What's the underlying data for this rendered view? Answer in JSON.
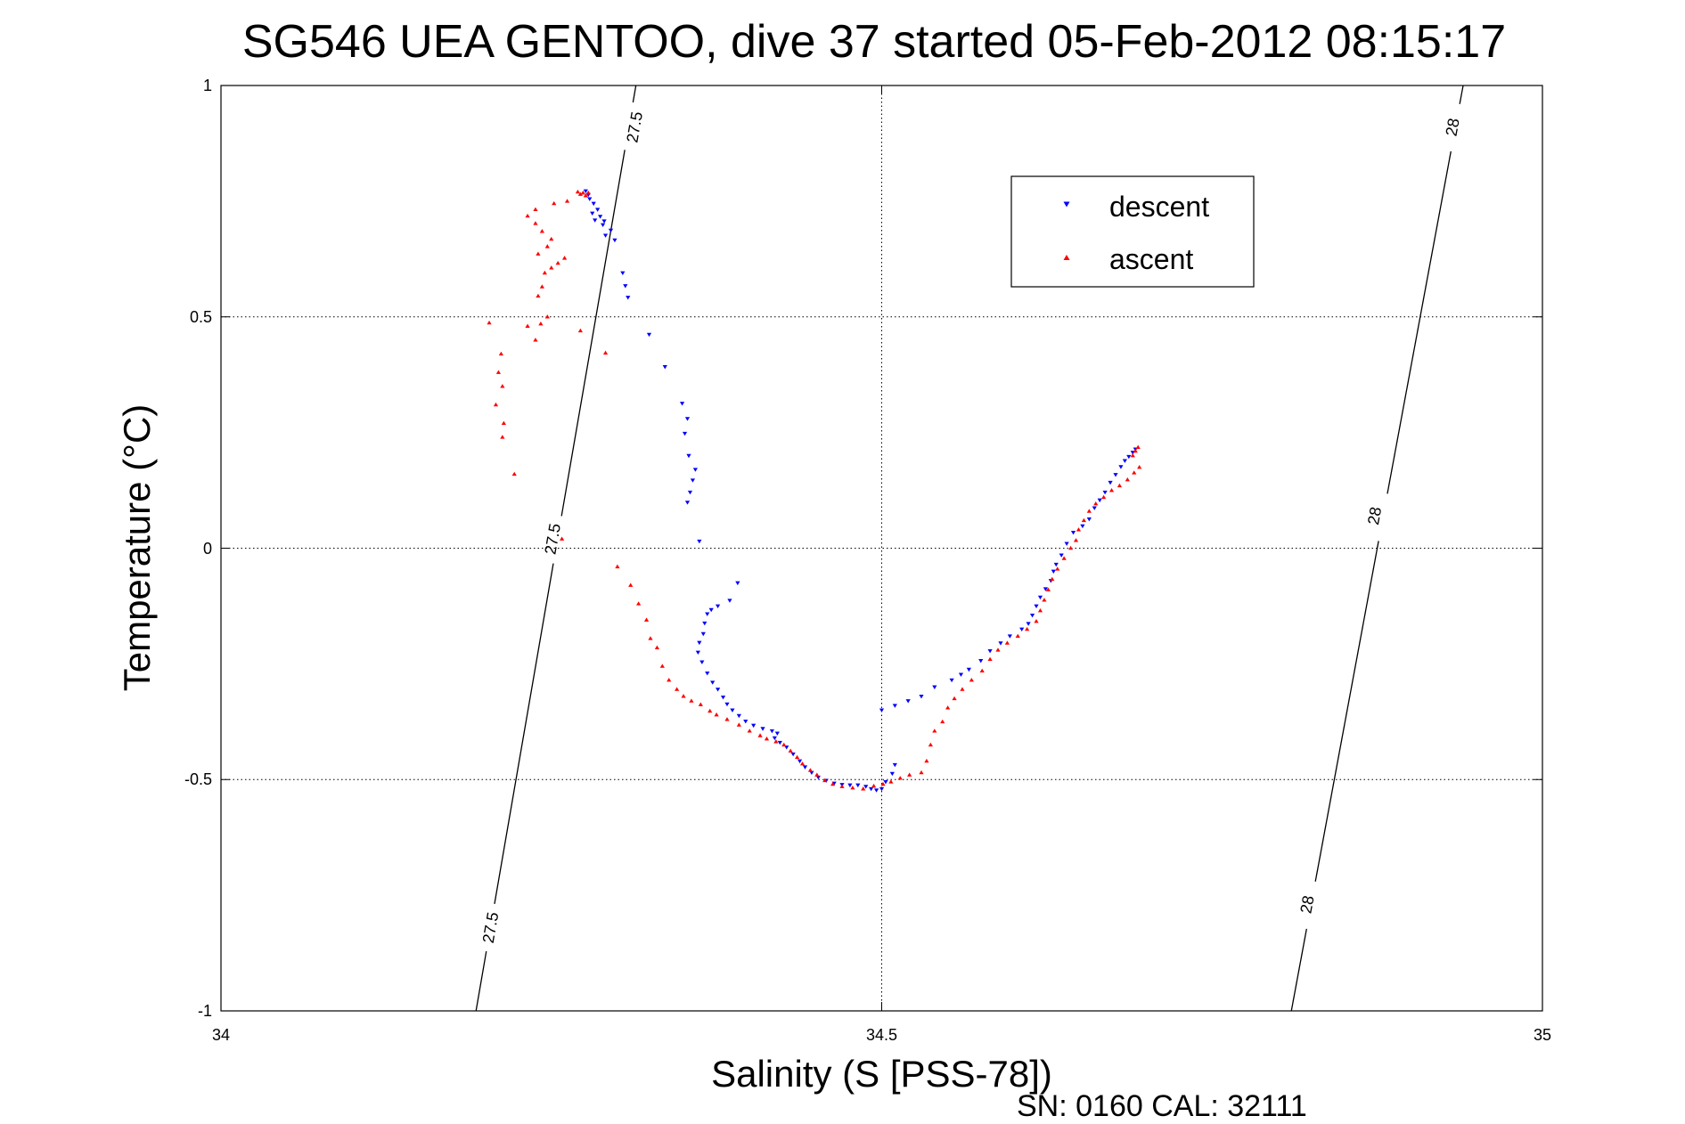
{
  "chart_data": {
    "type": "scatter",
    "title": "SG546 UEA GENTOO, dive 37 started 05-Feb-2012 08:15:17",
    "xlabel": "Salinity (S [PSS-78])",
    "ylabel": "Temperature (°C)",
    "xlim": [
      34,
      35
    ],
    "ylim": [
      -1,
      1
    ],
    "x_ticks": [
      "34",
      "34.5",
      "35"
    ],
    "y_ticks": [
      "1",
      "0.5",
      "0",
      "-0.5",
      "-1"
    ],
    "grid": true,
    "legend_position": "top-right",
    "footer": "SN: 0160  CAL: 32111",
    "contours": [
      {
        "label": "27.5",
        "points": [
          [
            34.193,
            -1.0
          ],
          [
            34.314,
            1.0
          ]
        ],
        "label_positions": [
          [
            34.204,
            -0.82
          ],
          [
            34.251,
            0.02
          ],
          [
            34.313,
            0.91
          ]
        ]
      },
      {
        "label": "28",
        "points": [
          [
            34.81,
            -1.0
          ],
          [
            34.94,
            1.0
          ]
        ],
        "label_positions": [
          [
            34.822,
            -0.77
          ],
          [
            34.873,
            0.07
          ],
          [
            34.932,
            0.91
          ]
        ]
      }
    ],
    "series": [
      {
        "name": "descent",
        "color": "#0000ff",
        "marker": "triangle-down",
        "points": [
          [
            34.276,
            0.772
          ],
          [
            34.278,
            0.764
          ],
          [
            34.279,
            0.755
          ],
          [
            34.282,
            0.745
          ],
          [
            34.285,
            0.732
          ],
          [
            34.281,
            0.724
          ],
          [
            34.287,
            0.717
          ],
          [
            34.283,
            0.709
          ],
          [
            34.29,
            0.707
          ],
          [
            34.289,
            0.699
          ],
          [
            34.295,
            0.687
          ],
          [
            34.291,
            0.676
          ],
          [
            34.298,
            0.666
          ],
          [
            34.304,
            0.595
          ],
          [
            34.306,
            0.567
          ],
          [
            34.308,
            0.542
          ],
          [
            34.324,
            0.462
          ],
          [
            34.336,
            0.392
          ],
          [
            34.349,
            0.313
          ],
          [
            34.353,
            0.28
          ],
          [
            34.351,
            0.248
          ],
          [
            34.354,
            0.2
          ],
          [
            34.359,
            0.17
          ],
          [
            34.357,
            0.147
          ],
          [
            34.355,
            0.121
          ],
          [
            34.353,
            0.099
          ],
          [
            34.362,
            0.015
          ],
          [
            34.391,
            -0.075
          ],
          [
            34.385,
            -0.113
          ],
          [
            34.376,
            -0.125
          ],
          [
            34.371,
            -0.133
          ],
          [
            34.368,
            -0.142
          ],
          [
            34.366,
            -0.162
          ],
          [
            34.365,
            -0.185
          ],
          [
            34.362,
            -0.204
          ],
          [
            34.361,
            -0.225
          ],
          [
            34.364,
            -0.246
          ],
          [
            34.368,
            -0.27
          ],
          [
            34.372,
            -0.29
          ],
          [
            34.376,
            -0.305
          ],
          [
            34.38,
            -0.322
          ],
          [
            34.383,
            -0.337
          ],
          [
            34.387,
            -0.35
          ],
          [
            34.392,
            -0.362
          ],
          [
            34.397,
            -0.374
          ],
          [
            34.403,
            -0.383
          ],
          [
            34.41,
            -0.39
          ],
          [
            34.417,
            -0.395
          ],
          [
            34.421,
            -0.4
          ],
          [
            34.419,
            -0.41
          ],
          [
            34.423,
            -0.42
          ],
          [
            34.428,
            -0.43
          ],
          [
            34.433,
            -0.445
          ],
          [
            34.438,
            -0.46
          ],
          [
            34.442,
            -0.473
          ],
          [
            34.447,
            -0.485
          ],
          [
            34.452,
            -0.495
          ],
          [
            34.458,
            -0.502
          ],
          [
            34.464,
            -0.508
          ],
          [
            34.47,
            -0.511
          ],
          [
            34.476,
            -0.512
          ],
          [
            34.482,
            -0.512
          ],
          [
            34.488,
            -0.515
          ],
          [
            34.492,
            -0.52
          ],
          [
            34.496,
            -0.523
          ],
          [
            34.5,
            -0.52
          ],
          [
            34.503,
            -0.505
          ],
          [
            34.508,
            -0.487
          ],
          [
            34.51,
            -0.468
          ],
          [
            34.5,
            -0.35
          ],
          [
            34.51,
            -0.34
          ],
          [
            34.52,
            -0.33
          ],
          [
            34.53,
            -0.32
          ],
          [
            34.54,
            -0.3
          ],
          [
            34.553,
            -0.285
          ],
          [
            34.56,
            -0.273
          ],
          [
            34.566,
            -0.262
          ],
          [
            34.575,
            -0.243
          ],
          [
            34.582,
            -0.222
          ],
          [
            34.59,
            -0.205
          ],
          [
            34.597,
            -0.19
          ],
          [
            34.606,
            -0.175
          ],
          [
            34.611,
            -0.163
          ],
          [
            34.614,
            -0.145
          ],
          [
            34.617,
            -0.125
          ],
          [
            34.62,
            -0.106
          ],
          [
            34.624,
            -0.088
          ],
          [
            34.628,
            -0.07
          ],
          [
            34.63,
            -0.05
          ],
          [
            34.632,
            -0.035
          ],
          [
            34.636,
            -0.015
          ],
          [
            34.64,
            0.01
          ],
          [
            34.645,
            0.034
          ],
          [
            34.652,
            0.048
          ],
          [
            34.657,
            0.063
          ],
          [
            34.661,
            0.087
          ],
          [
            34.665,
            0.104
          ],
          [
            34.669,
            0.121
          ],
          [
            34.673,
            0.142
          ],
          [
            34.677,
            0.159
          ],
          [
            34.681,
            0.176
          ],
          [
            34.684,
            0.189
          ],
          [
            34.687,
            0.198
          ],
          [
            34.69,
            0.207
          ],
          [
            34.692,
            0.214
          ]
        ]
      },
      {
        "name": "ascent",
        "color": "#ff0000",
        "marker": "triangle-up",
        "points": [
          [
            34.27,
            0.77
          ],
          [
            34.272,
            0.765
          ],
          [
            34.274,
            0.768
          ],
          [
            34.276,
            0.762
          ],
          [
            34.278,
            0.768
          ],
          [
            34.262,
            0.75
          ],
          [
            34.252,
            0.745
          ],
          [
            34.238,
            0.732
          ],
          [
            34.232,
            0.718
          ],
          [
            34.238,
            0.702
          ],
          [
            34.243,
            0.685
          ],
          [
            34.25,
            0.668
          ],
          [
            34.247,
            0.652
          ],
          [
            34.24,
            0.636
          ],
          [
            34.26,
            0.627
          ],
          [
            34.255,
            0.616
          ],
          [
            34.25,
            0.606
          ],
          [
            34.245,
            0.595
          ],
          [
            34.243,
            0.565
          ],
          [
            34.24,
            0.545
          ],
          [
            34.247,
            0.5
          ],
          [
            34.242,
            0.485
          ],
          [
            34.232,
            0.48
          ],
          [
            34.238,
            0.45
          ],
          [
            34.272,
            0.47
          ],
          [
            34.291,
            0.422
          ],
          [
            34.203,
            0.487
          ],
          [
            34.212,
            0.42
          ],
          [
            34.21,
            0.38
          ],
          [
            34.213,
            0.35
          ],
          [
            34.208,
            0.31
          ],
          [
            34.214,
            0.27
          ],
          [
            34.213,
            0.24
          ],
          [
            34.222,
            0.16
          ],
          [
            34.258,
            0.02
          ],
          [
            34.3,
            -0.04
          ],
          [
            34.31,
            -0.08
          ],
          [
            34.316,
            -0.12
          ],
          [
            34.322,
            -0.155
          ],
          [
            34.325,
            -0.195
          ],
          [
            34.33,
            -0.215
          ],
          [
            34.334,
            -0.255
          ],
          [
            34.339,
            -0.285
          ],
          [
            34.345,
            -0.305
          ],
          [
            34.35,
            -0.32
          ],
          [
            34.356,
            -0.33
          ],
          [
            34.363,
            -0.338
          ],
          [
            34.37,
            -0.352
          ],
          [
            34.375,
            -0.36
          ],
          [
            34.383,
            -0.37
          ],
          [
            34.392,
            -0.382
          ],
          [
            34.4,
            -0.395
          ],
          [
            34.408,
            -0.405
          ],
          [
            34.413,
            -0.412
          ],
          [
            34.42,
            -0.418
          ],
          [
            34.426,
            -0.425
          ],
          [
            34.431,
            -0.438
          ],
          [
            34.436,
            -0.452
          ],
          [
            34.44,
            -0.466
          ],
          [
            34.446,
            -0.48
          ],
          [
            34.451,
            -0.49
          ],
          [
            34.457,
            -0.502
          ],
          [
            34.463,
            -0.51
          ],
          [
            34.47,
            -0.515
          ],
          [
            34.478,
            -0.518
          ],
          [
            34.486,
            -0.52
          ],
          [
            34.494,
            -0.514
          ],
          [
            34.501,
            -0.51
          ],
          [
            34.507,
            -0.505
          ],
          [
            34.514,
            -0.497
          ],
          [
            34.521,
            -0.49
          ],
          [
            34.53,
            -0.485
          ],
          [
            34.534,
            -0.46
          ],
          [
            34.537,
            -0.425
          ],
          [
            34.54,
            -0.395
          ],
          [
            34.546,
            -0.375
          ],
          [
            34.55,
            -0.345
          ],
          [
            34.555,
            -0.325
          ],
          [
            34.561,
            -0.305
          ],
          [
            34.568,
            -0.285
          ],
          [
            34.576,
            -0.265
          ],
          [
            34.582,
            -0.24
          ],
          [
            34.588,
            -0.22
          ],
          [
            34.595,
            -0.205
          ],
          [
            34.603,
            -0.19
          ],
          [
            34.61,
            -0.175
          ],
          [
            34.617,
            -0.158
          ],
          [
            34.62,
            -0.135
          ],
          [
            34.623,
            -0.112
          ],
          [
            34.626,
            -0.09
          ],
          [
            34.629,
            -0.067
          ],
          [
            34.633,
            -0.045
          ],
          [
            34.638,
            -0.022
          ],
          [
            34.643,
            0.0
          ],
          [
            34.647,
            0.017
          ],
          [
            34.649,
            0.04
          ],
          [
            34.653,
            0.06
          ],
          [
            34.657,
            0.08
          ],
          [
            34.662,
            0.096
          ],
          [
            34.668,
            0.11
          ],
          [
            34.674,
            0.125
          ],
          [
            34.68,
            0.135
          ],
          [
            34.686,
            0.148
          ],
          [
            34.691,
            0.163
          ],
          [
            34.695,
            0.175
          ],
          [
            34.69,
            0.2
          ],
          [
            34.692,
            0.21
          ],
          [
            34.694,
            0.218
          ]
        ]
      }
    ]
  }
}
